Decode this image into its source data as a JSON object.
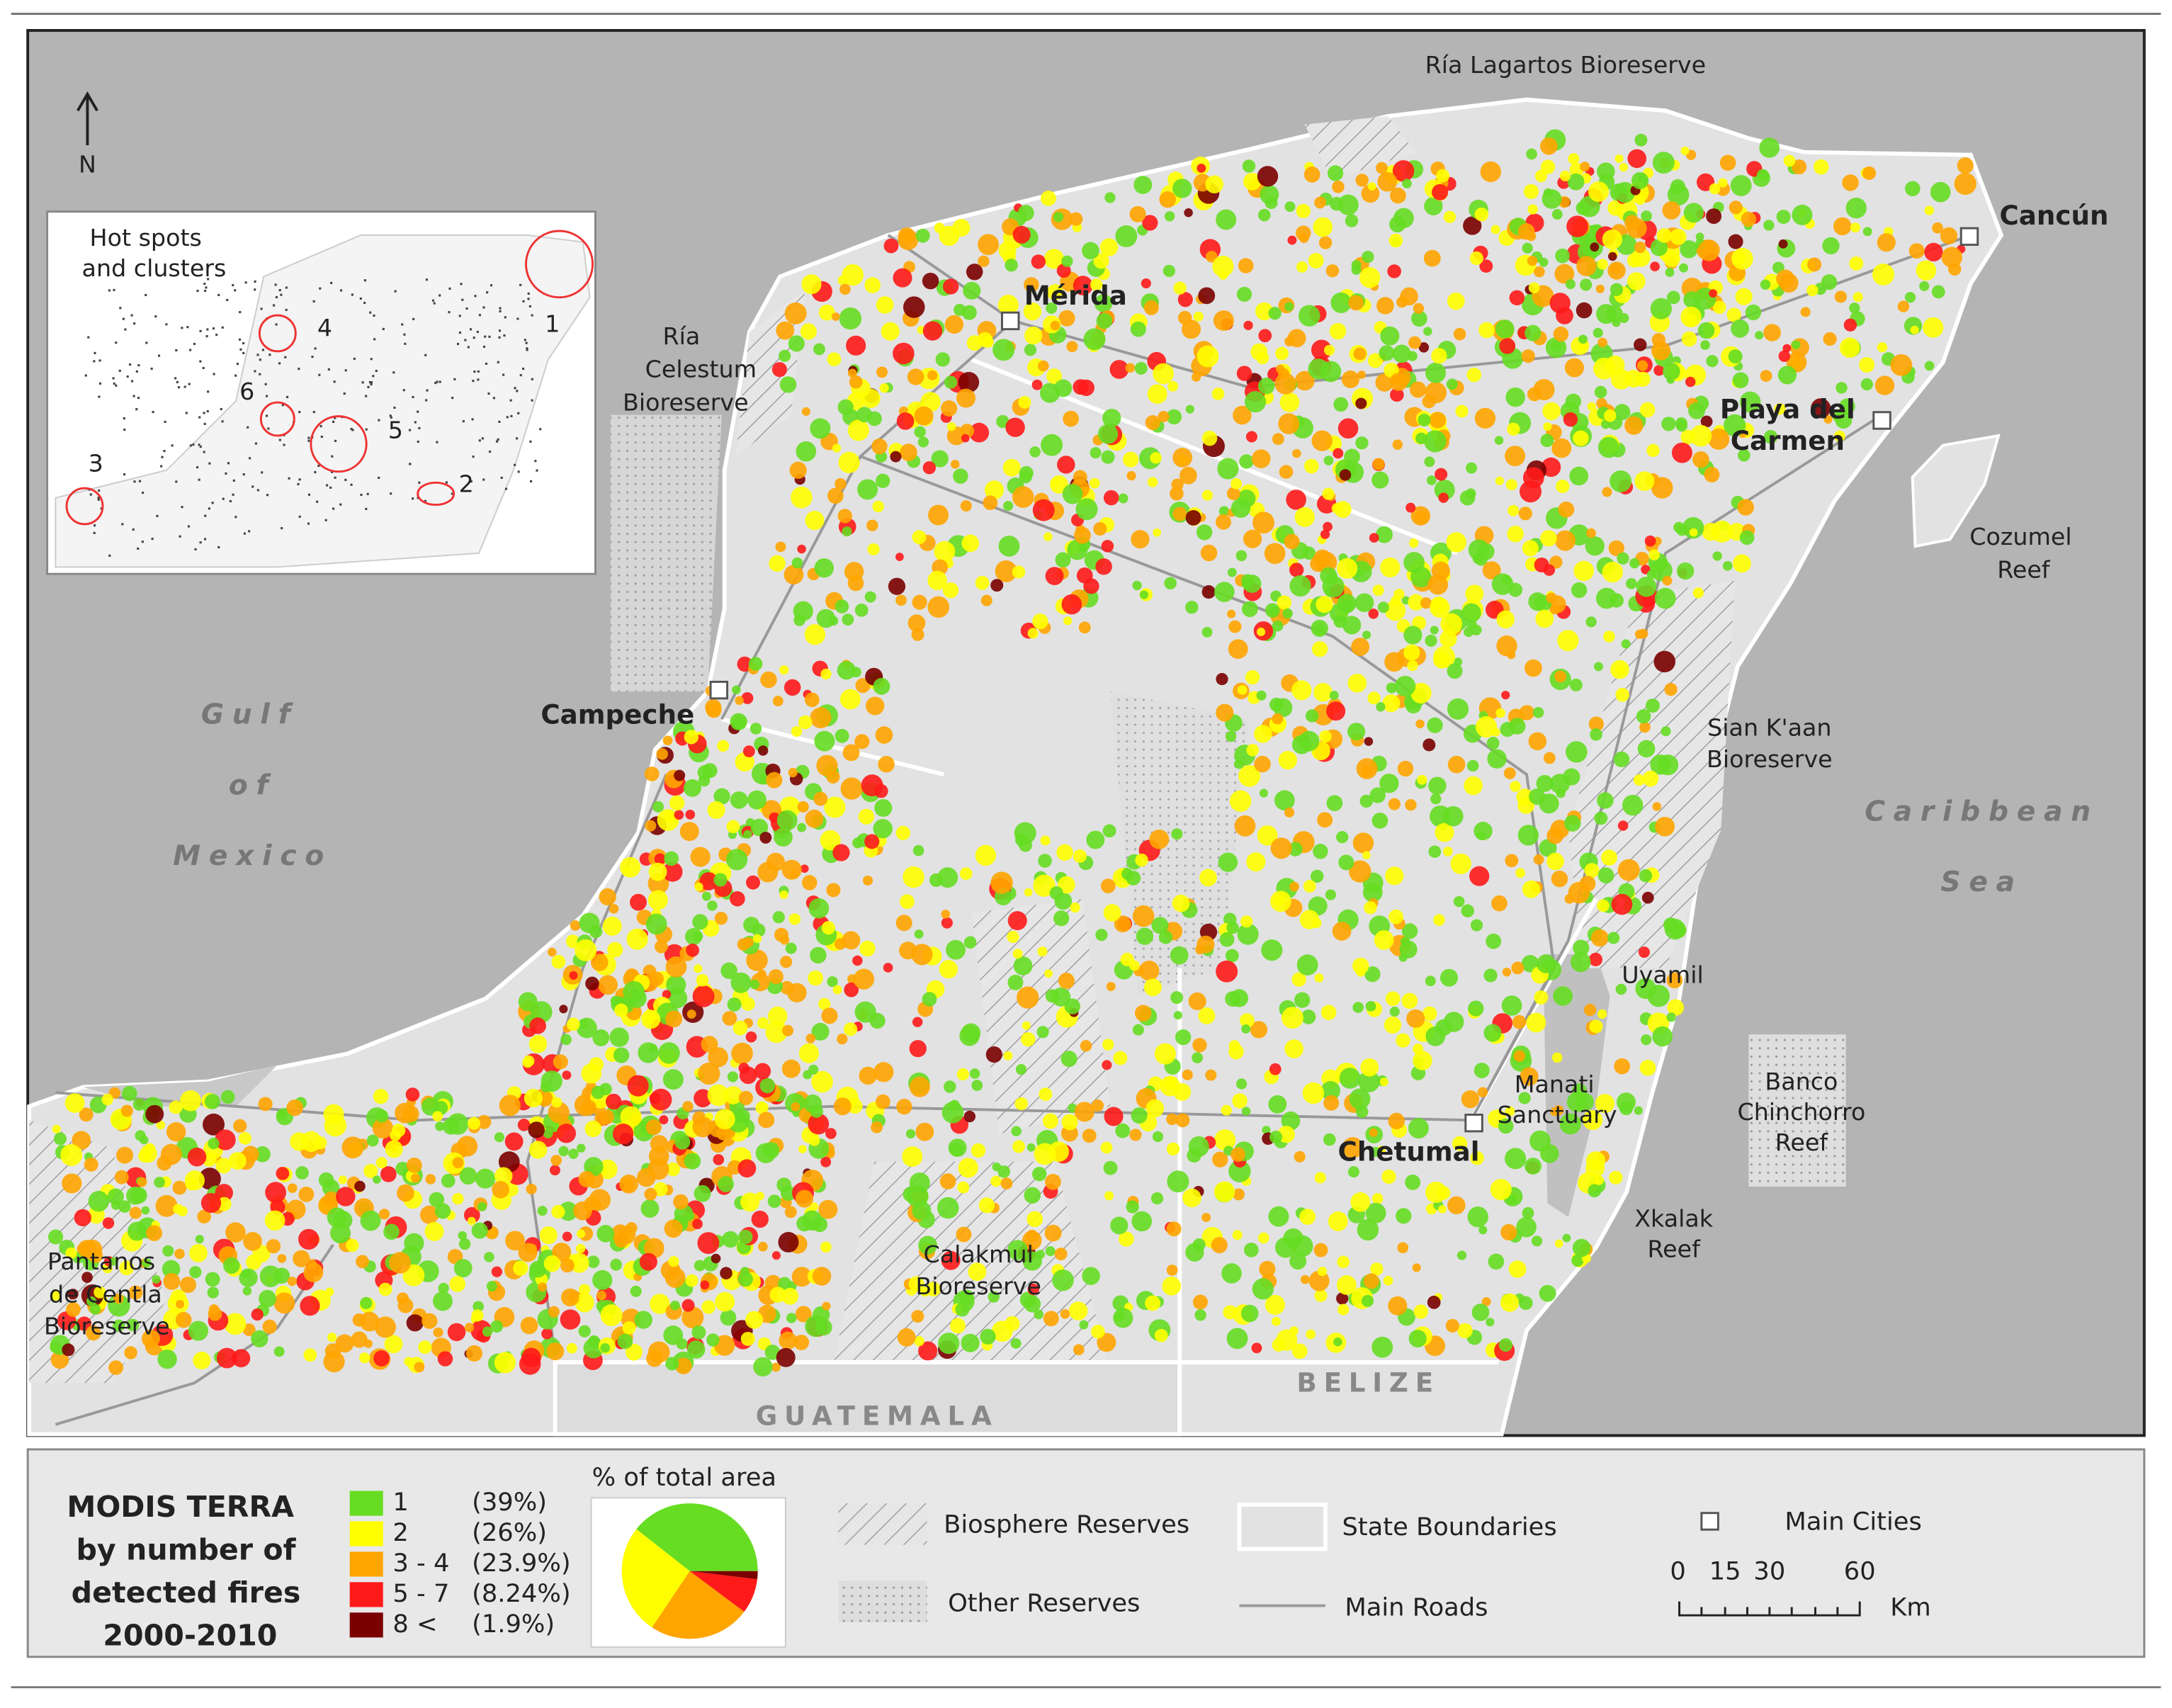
{
  "map": {
    "labels": {
      "ria_lagartos": "Ría Lagartos Bioreserve",
      "north": "N",
      "merida": "Mérida",
      "cancun": "Cancún",
      "playa": [
        "Playa del",
        "Carmen"
      ],
      "ria_celestum": [
        "Ría",
        "Celestum",
        "Bioreserve"
      ],
      "cozumel": [
        "Cozumel",
        "Reef"
      ],
      "gulf": [
        "Gulf",
        "of",
        "Mexico"
      ],
      "campeche": "Campeche",
      "sian_kaan": [
        "Sian K'aan",
        "Bioreserve"
      ],
      "caribbean": [
        "Caribbean",
        "Sea"
      ],
      "uyamil": "Uyamil",
      "manati": [
        "Manati",
        "Sanctuary"
      ],
      "chinchorro": [
        "Banco",
        "Chinchorro",
        "Reef"
      ],
      "chetumal": "Chetumal",
      "xkalak": [
        "Xkalak",
        "Reef"
      ],
      "centla": [
        "Pantanos",
        "de Centla",
        "Bioreserve"
      ],
      "calakmul": [
        "Calakmul",
        "Bioreserve"
      ],
      "belize": "BELIZE",
      "guatemala": "GUATEMALA"
    },
    "inset": {
      "title": [
        "Hot spots",
        "and clusters"
      ],
      "clusters": [
        "1",
        "2",
        "3",
        "4",
        "5",
        "6"
      ]
    }
  },
  "legend": {
    "title": [
      "MODIS TERRA",
      "by number of",
      "detected fires",
      "2000-2010"
    ],
    "pie_title": "% of total area",
    "classes": [
      {
        "label": "1",
        "value": 39,
        "value_label": "(39%)",
        "color": "#66dd22"
      },
      {
        "label": "2",
        "value": 26,
        "value_label": "(26%)",
        "color": "#ffff00"
      },
      {
        "label": "3 - 4",
        "value": 23.9,
        "value_label": "(23.9%)",
        "color": "#ffa500"
      },
      {
        "label": "5 - 7",
        "value": 8.24,
        "value_label": "(8.24%)",
        "color": "#ff1a1a"
      },
      {
        "label": "8 <",
        "value": 1.9,
        "value_label": "(1.9%)",
        "color": "#7a0000"
      }
    ],
    "items": {
      "biosphere": "Biosphere Reserves",
      "other": "Other Reserves",
      "state": "State Boundaries",
      "roads": "Main Roads",
      "cities": "Main Cities"
    },
    "scale": {
      "ticks": [
        "0",
        "15",
        "30",
        "60"
      ],
      "unit": "Km"
    }
  }
}
